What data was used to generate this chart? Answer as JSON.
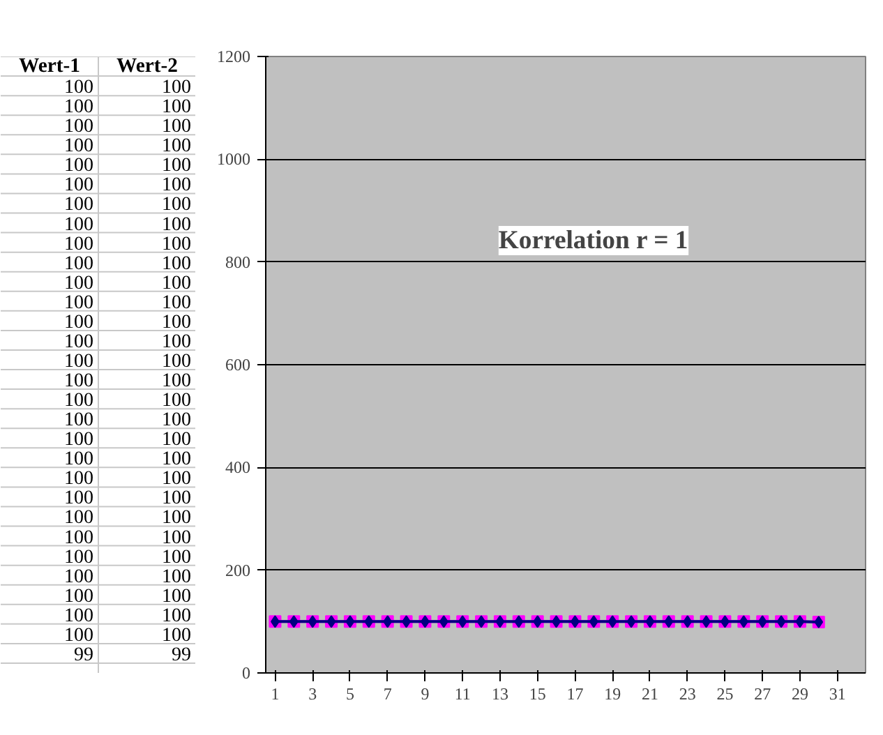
{
  "chart_data": [
    {
      "type": "other",
      "annotations": [
        "Wert-1",
        "Wert-2",
        "100",
        "100",
        "100",
        "100",
        "100",
        "100",
        "100",
        "100",
        "100",
        "100",
        "100",
        "100",
        "100",
        "100",
        "100",
        "100",
        "100",
        "100",
        "100",
        "100",
        "100",
        "100",
        "100",
        "100",
        "100",
        "100",
        "100",
        "100",
        "100",
        "100",
        "100",
        "100",
        "100",
        "100",
        "100",
        "100",
        "100",
        "100",
        "100",
        "100",
        "100",
        "100",
        "100",
        "100",
        "100",
        "100",
        "100",
        "100",
        "100",
        "100",
        "100",
        "100",
        "100",
        "100",
        "100",
        "100",
        "100",
        "100",
        "99",
        "99"
      ]
    },
    {
      "type": "line",
      "x": [
        1,
        2,
        3,
        4,
        5,
        6,
        7,
        8,
        9,
        10,
        11,
        12,
        13,
        14,
        15,
        16,
        17,
        18,
        19,
        20,
        21,
        22,
        23,
        24,
        25,
        26,
        27,
        28,
        29,
        30
      ],
      "series": [
        {
          "color": "#000080",
          "marker": "diamond",
          "values": [
            100,
            100,
            100,
            100,
            100,
            100,
            100,
            100,
            100,
            100,
            100,
            100,
            100,
            100,
            100,
            100,
            100,
            100,
            100,
            100,
            100,
            100,
            100,
            100,
            100,
            100,
            100,
            100,
            100,
            99
          ]
        },
        {
          "color": "#ff00ff",
          "marker": "square",
          "values": [
            100,
            100,
            100,
            100,
            100,
            100,
            100,
            100,
            100,
            100,
            100,
            100,
            100,
            100,
            100,
            100,
            100,
            100,
            100,
            100,
            100,
            100,
            100,
            100,
            100,
            100,
            100,
            100,
            100,
            99
          ]
        }
      ],
      "xlim": [
        0.5,
        32.5
      ],
      "xticks": [
        1,
        3,
        5,
        7,
        9,
        11,
        13,
        15,
        17,
        19,
        21,
        23,
        25,
        27,
        29,
        31
      ],
      "ylim": [
        0,
        1200
      ],
      "yticks": [
        0,
        200,
        400,
        600,
        800,
        1000,
        1200
      ],
      "grid": "y",
      "line_style": "solid",
      "annotations": [
        "Korrelation r = 1"
      ]
    }
  ]
}
